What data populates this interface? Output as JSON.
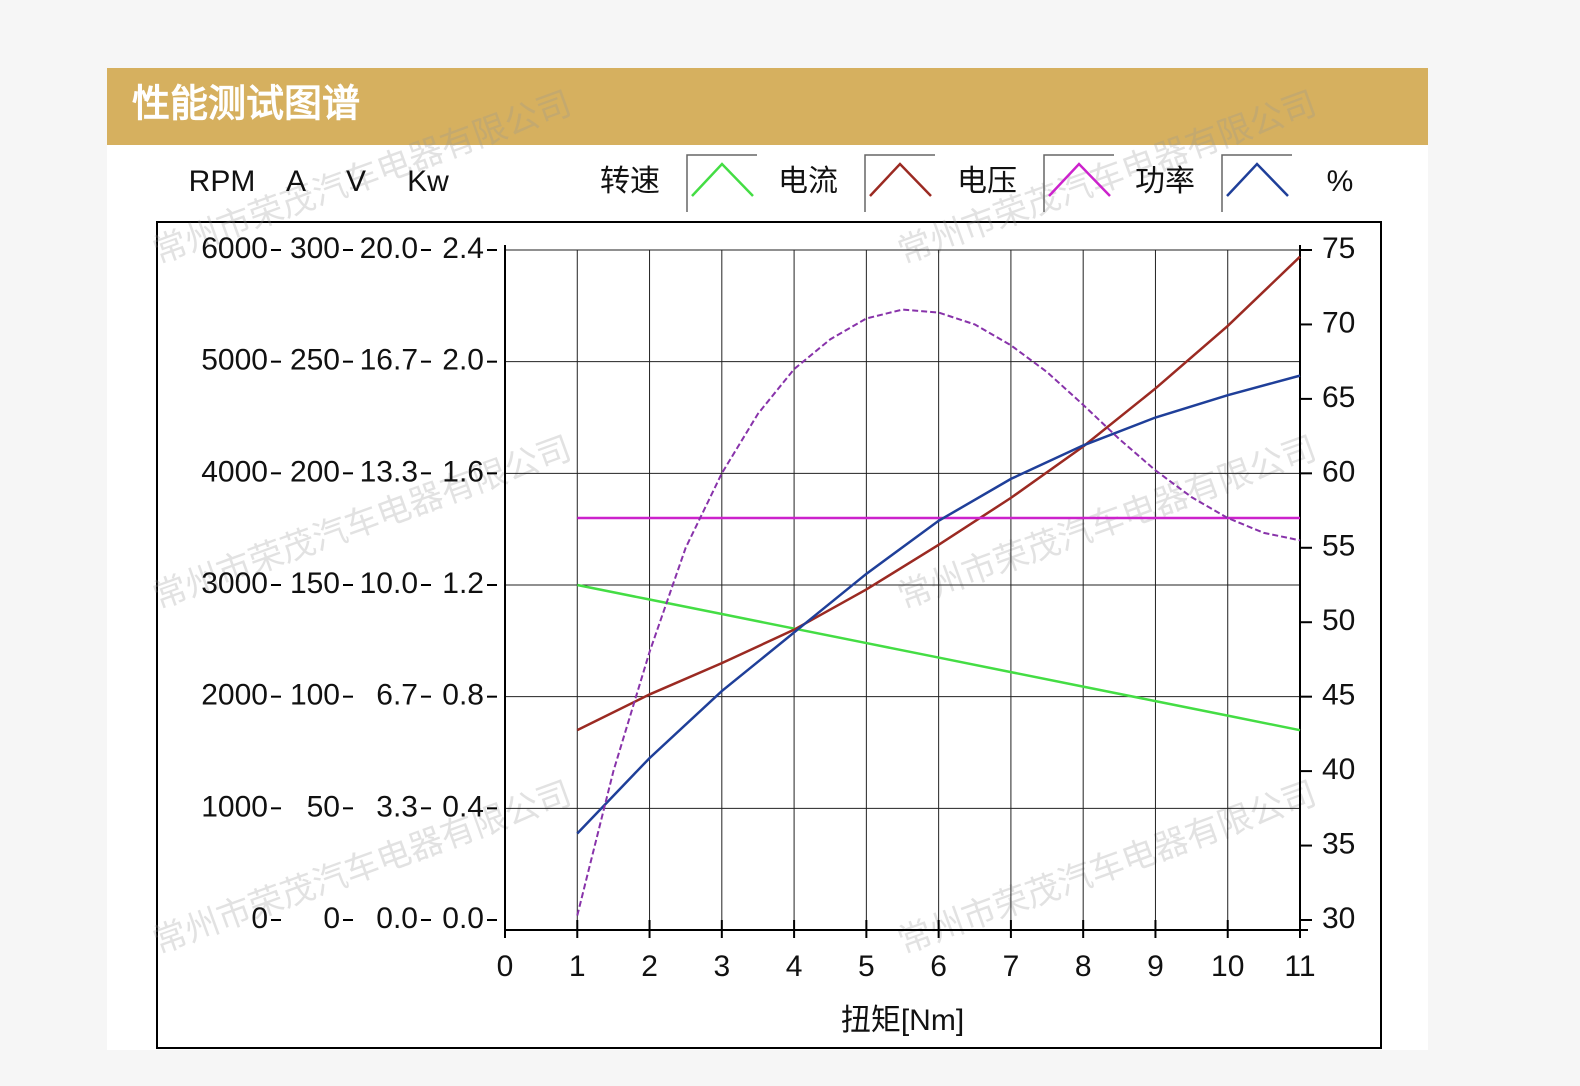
{
  "header": {
    "title": "性能测试图谱"
  },
  "watermark": "常州市荣茂汽车电器有限公司",
  "chart_data": {
    "type": "line",
    "x_label": "扭矩[Nm]",
    "xlim": [
      0,
      11
    ],
    "xticks": [
      0,
      1,
      2,
      3,
      4,
      5,
      6,
      7,
      8,
      9,
      10,
      11
    ],
    "x": [
      1,
      2,
      3,
      4,
      5,
      6,
      7,
      8,
      9,
      10,
      11
    ],
    "grid": true,
    "y_axes": [
      {
        "label": "RPM",
        "ylim": [
          0,
          6000
        ],
        "yticks": [
          0,
          1000,
          2000,
          3000,
          4000,
          5000,
          6000
        ]
      },
      {
        "label": "A",
        "ylim": [
          0,
          300
        ],
        "yticks": [
          0,
          50,
          100,
          150,
          200,
          250,
          300
        ]
      },
      {
        "label": "V",
        "ylim": [
          0,
          20
        ],
        "yticks": [
          {
            "value": 0,
            "label": "0.0"
          },
          {
            "value": 3.333,
            "label": "3.3"
          },
          {
            "value": 6.667,
            "label": "6.7"
          },
          {
            "value": 10,
            "label": "10.0"
          },
          {
            "value": 13.333,
            "label": "13.3"
          },
          {
            "value": 16.667,
            "label": "16.7"
          },
          {
            "value": 20,
            "label": "20.0"
          }
        ]
      },
      {
        "label": "Kw",
        "ylim": [
          0,
          2.4
        ],
        "yticks": [
          {
            "value": 0,
            "label": "0.0"
          },
          0.4,
          0.8,
          1.2,
          1.6,
          {
            "value": 2,
            "label": "2.0"
          },
          2.4
        ]
      }
    ],
    "y2_label": "%",
    "y2lim": [
      30,
      75
    ],
    "y2ticks": [
      30,
      35,
      40,
      45,
      50,
      55,
      60,
      65,
      70,
      75
    ],
    "series": [
      {
        "name": "转速",
        "color": "#44dd44",
        "axis": "RPM",
        "values": [
          3000,
          2870,
          2740,
          2610,
          2480,
          2350,
          2220,
          2090,
          1960,
          1830,
          1700
        ]
      },
      {
        "name": "电流",
        "color": "#9b2a22",
        "axis": "A",
        "values": [
          85,
          101,
          115,
          130,
          148,
          168,
          189,
          212,
          238,
          266,
          297
        ]
      },
      {
        "name": "电压",
        "color": "#cc22cc",
        "axis": "V",
        "values": [
          12,
          12,
          12,
          12,
          12,
          12,
          12,
          12,
          12,
          12,
          12
        ]
      },
      {
        "name": "功率",
        "color": "#1f3f99",
        "axis": "Kw",
        "values": [
          0.31,
          0.58,
          0.82,
          1.03,
          1.24,
          1.43,
          1.58,
          1.7,
          1.8,
          1.88,
          1.95
        ]
      },
      {
        "color": "#8833aa",
        "axis": "y2",
        "dashed": true,
        "x": [
          1,
          1.5,
          2,
          2.5,
          3,
          3.5,
          4,
          4.5,
          5,
          5.5,
          6,
          6.5,
          7,
          7.5,
          8,
          8.5,
          9,
          9.5,
          10,
          10.5,
          11
        ],
        "values": [
          30.3,
          40,
          48,
          55,
          60,
          64,
          67,
          69,
          70.4,
          71,
          70.8,
          70,
          68.6,
          66.8,
          64.6,
          62.3,
          60.2,
          58.4,
          57,
          56,
          55.5
        ]
      }
    ]
  }
}
